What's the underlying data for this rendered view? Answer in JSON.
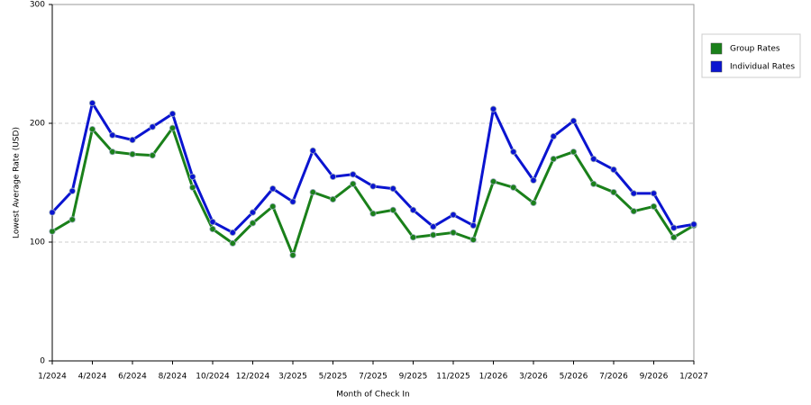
{
  "chart_data": {
    "type": "line",
    "xlabel": "Month of Check In",
    "ylabel": "Lowest Average Rate (USD)",
    "categories": [
      "1/2024",
      null,
      "4/2024",
      null,
      "6/2024",
      null,
      "8/2024",
      null,
      "10/2024",
      null,
      "12/2024",
      null,
      "3/2025",
      null,
      "5/2025",
      null,
      "7/2025",
      null,
      "9/2025",
      null,
      "11/2025",
      null,
      "1/2026",
      null,
      "3/2026",
      null,
      "5/2026",
      null,
      "7/2026",
      null,
      "9/2026",
      null,
      "1/2027"
    ],
    "series": [
      {
        "name": "Group Rates",
        "color": "#1a801a",
        "values": [
          109,
          119,
          195,
          176,
          174,
          173,
          196,
          146,
          111,
          99,
          116,
          130,
          89,
          142,
          136,
          149,
          124,
          127,
          104,
          106,
          108,
          102,
          151,
          146,
          133,
          170,
          176,
          149,
          142,
          126,
          130,
          104,
          114
        ]
      },
      {
        "name": "Individual Rates",
        "color": "#0a14d0",
        "values": [
          125,
          143,
          217,
          190,
          186,
          197,
          208,
          155,
          117,
          108,
          125,
          145,
          134,
          177,
          155,
          157,
          147,
          145,
          127,
          113,
          123,
          114,
          212,
          176,
          152,
          189,
          202,
          170,
          161,
          141,
          141,
          112,
          115
        ]
      }
    ],
    "ylim": [
      0,
      300
    ],
    "yticks": [
      0,
      100,
      200,
      300
    ],
    "grid": true,
    "legend": "right"
  }
}
